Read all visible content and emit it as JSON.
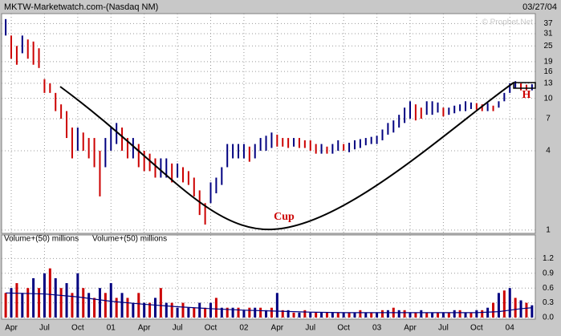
{
  "chart_data": [
    {
      "type": "stock",
      "title": "MKTW-Marketwatch.com-(Nasdaq NM)",
      "date": "03/27/04",
      "watermark": "© Prophet.Net",
      "annotations": [
        "Cup",
        "H"
      ],
      "log_scale": true,
      "grid": true,
      "up_color": "#000080",
      "down_color": "#cc0000",
      "xlim": [
        -0.87,
        47.3
      ],
      "xticks": [
        {
          "value": 0,
          "label": "Apr"
        },
        {
          "value": 3,
          "label": "Jul"
        },
        {
          "value": 6,
          "label": "Oct"
        },
        {
          "value": 9,
          "label": "01"
        },
        {
          "value": 12,
          "label": "Apr"
        },
        {
          "value": 15,
          "label": "Jul"
        },
        {
          "value": 18,
          "label": "Oct"
        },
        {
          "value": 21,
          "label": "02"
        },
        {
          "value": 24,
          "label": "Apr"
        },
        {
          "value": 27,
          "label": "Jul"
        },
        {
          "value": 30,
          "label": "Oct"
        },
        {
          "value": 33,
          "label": "03"
        },
        {
          "value": 36,
          "label": "Apr"
        },
        {
          "value": 39,
          "label": "Jul"
        },
        {
          "value": 42,
          "label": "Oct"
        },
        {
          "value": 45,
          "label": "04"
        }
      ],
      "ylim": [
        0.97,
        44
      ],
      "yticks": [
        37,
        31,
        25,
        19,
        16,
        13,
        10,
        7,
        4,
        1
      ],
      "x": [
        -0.5,
        0,
        0.5,
        1,
        1.5,
        2,
        2.5,
        3,
        3.5,
        4,
        4.5,
        5,
        5.5,
        6,
        6.5,
        7,
        7.5,
        8,
        8.5,
        9,
        9.5,
        10,
        10.5,
        11,
        11.5,
        12,
        12.5,
        13,
        13.5,
        14,
        14.5,
        15,
        15.5,
        16,
        16.5,
        17,
        17.5,
        18,
        18.5,
        19,
        19.5,
        20,
        20.5,
        21,
        21.5,
        22,
        22.5,
        23,
        23.5,
        24,
        24.5,
        25,
        25.5,
        26,
        26.5,
        27,
        27.5,
        28,
        28.5,
        29,
        29.5,
        30,
        30.5,
        31,
        31.5,
        32,
        32.5,
        33,
        33.5,
        34,
        34.5,
        35,
        35.5,
        36,
        36.5,
        37,
        37.5,
        38,
        38.5,
        39,
        39.5,
        40,
        40.5,
        41,
        41.5,
        42,
        42.5,
        43,
        43.5,
        44,
        44.5,
        45,
        45.5,
        46,
        46.5,
        47
      ],
      "high": [
        40,
        30,
        25,
        30,
        28,
        27,
        24,
        14,
        13,
        11,
        9,
        8,
        6,
        6,
        5.5,
        5,
        5,
        4,
        5,
        6,
        6.5,
        6,
        5,
        5,
        4.5,
        4,
        3.8,
        3.5,
        3.5,
        3.5,
        3.2,
        3.2,
        3,
        2.8,
        2.5,
        2,
        1.6,
        2.3,
        2.5,
        3,
        4.5,
        4.5,
        4.5,
        4.5,
        4.3,
        4.5,
        5,
        5.2,
        5.5,
        5.3,
        5,
        5,
        5,
        5,
        4.8,
        4.8,
        4.5,
        4.5,
        4.3,
        4.5,
        4.8,
        4.5,
        4.6,
        4.8,
        4.9,
        5,
        5.1,
        5.2,
        5.8,
        6.5,
        6.8,
        7.5,
        8.5,
        9.5,
        9,
        8.5,
        9.5,
        9.5,
        9.3,
        8.5,
        8.5,
        8.8,
        9,
        9.5,
        9.3,
        9.2,
        9,
        9.2,
        8.8,
        9.5,
        11,
        13,
        13.5,
        13,
        12.7,
        12.8
      ],
      "low": [
        30,
        20,
        18,
        22,
        20,
        18,
        17,
        11,
        11,
        8,
        7,
        5,
        3.5,
        4,
        4,
        3.5,
        3,
        1.8,
        3,
        4,
        4.5,
        4,
        3.5,
        3.5,
        3,
        2.8,
        2.8,
        2.5,
        2.5,
        2.5,
        2.3,
        2.5,
        2.3,
        2.2,
        1.8,
        1.3,
        1.1,
        1.6,
        1.9,
        2.2,
        3,
        3.5,
        3.5,
        3.5,
        3.3,
        3.5,
        4,
        4,
        4.2,
        4.3,
        4.3,
        4.2,
        4.3,
        4.2,
        4.2,
        4,
        3.8,
        3.8,
        3.8,
        3.8,
        4,
        4,
        3.9,
        4.1,
        4.2,
        4.4,
        4.5,
        4.5,
        4.8,
        5.3,
        5.5,
        6,
        6.5,
        7,
        6.8,
        7,
        7.5,
        7.5,
        7.8,
        7.3,
        7.5,
        7.7,
        8,
        8,
        8.3,
        8.2,
        8,
        8,
        8,
        8.5,
        9.5,
        11,
        12,
        11.5,
        11.5,
        11.5
      ]
    },
    {
      "type": "bar",
      "grid": true,
      "xlim": [
        -0.87,
        47.3
      ],
      "ylim": [
        0,
        1.5
      ],
      "yticks": [
        1.2,
        0.9,
        0.6,
        0.3,
        {
          "value": 0,
          "label": "0.0"
        }
      ],
      "x": [
        -0.5,
        0,
        0.5,
        1,
        1.5,
        2,
        2.5,
        3,
        3.5,
        4,
        4.5,
        5,
        5.5,
        6,
        6.5,
        7,
        7.5,
        8,
        8.5,
        9,
        9.5,
        10,
        10.5,
        11,
        11.5,
        12,
        12.5,
        13,
        13.5,
        14,
        14.5,
        15,
        15.5,
        16,
        16.5,
        17,
        17.5,
        18,
        18.5,
        19,
        19.5,
        20,
        20.5,
        21,
        21.5,
        22,
        22.5,
        23,
        23.5,
        24,
        24.5,
        25,
        25.5,
        26,
        26.5,
        27,
        27.5,
        28,
        28.5,
        29,
        29.5,
        30,
        30.5,
        31,
        31.5,
        32,
        32.5,
        33,
        33.5,
        34,
        34.5,
        35,
        35.5,
        36,
        36.5,
        37,
        37.5,
        38,
        38.5,
        39,
        39.5,
        40,
        40.5,
        41,
        41.5,
        42,
        42.5,
        43,
        43.5,
        44,
        44.5,
        45,
        45.5,
        46,
        46.5,
        47
      ],
      "series": [
        {
          "name": "Volume+(50) millions",
          "color": "#cc0000",
          "values": [
            0.5,
            0.6,
            0.7,
            0.5,
            0.6,
            0.8,
            0.6,
            0.9,
            1.0,
            0.8,
            0.6,
            0.7,
            0.5,
            0.9,
            0.6,
            0.5,
            0.4,
            0.6,
            0.5,
            0.7,
            0.4,
            0.5,
            0.4,
            0.3,
            0.5,
            0.3,
            0.3,
            0.4,
            0.6,
            0.3,
            0.3,
            0.2,
            0.3,
            0.2,
            0.2,
            0.3,
            0.2,
            0.3,
            0.4,
            0.2,
            0.2,
            0.2,
            0.2,
            0.15,
            0.2,
            0.2,
            0.2,
            0.15,
            0.2,
            0.5,
            0.15,
            0.15,
            0.1,
            0.1,
            0.15,
            0.1,
            0.1,
            0.1,
            0.1,
            0.1,
            0.1,
            0.1,
            0.1,
            0.1,
            0.15,
            0.1,
            0.1,
            0.1,
            0.15,
            0.15,
            0.2,
            0.15,
            0.15,
            0.1,
            0.1,
            0.15,
            0.1,
            0.1,
            0.1,
            0.1,
            0.1,
            0.15,
            0.15,
            0.1,
            0.1,
            0.15,
            0.15,
            0.2,
            0.3,
            0.5,
            0.55,
            0.6,
            0.4,
            0.35,
            0.3,
            0.25
          ]
        },
        {
          "name": "Volume+(50) millions",
          "color": "#000080",
          "x": [
            -0.5,
            3,
            6,
            9,
            12,
            15,
            18,
            21,
            24,
            27,
            30,
            33,
            36,
            39,
            42,
            44,
            45,
            46,
            47
          ],
          "values": [
            0.5,
            0.48,
            0.42,
            0.33,
            0.27,
            0.22,
            0.18,
            0.15,
            0.13,
            0.11,
            0.1,
            0.1,
            0.1,
            0.1,
            0.1,
            0.12,
            0.15,
            0.18,
            0.2
          ]
        }
      ]
    }
  ]
}
